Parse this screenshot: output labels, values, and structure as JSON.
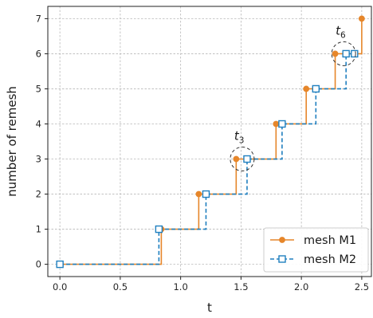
{
  "chart_data": {
    "type": "line",
    "step": "post",
    "xlabel": "t",
    "ylabel": "number of remesh",
    "xlim": [
      -0.1,
      2.58
    ],
    "ylim": [
      -0.35,
      7.35
    ],
    "xticks": [
      0.0,
      0.5,
      1.0,
      1.5,
      2.0,
      2.5
    ],
    "xtick_labels": [
      "0.0",
      "0.5",
      "1.0",
      "1.5",
      "2.0",
      "2.5"
    ],
    "yticks": [
      0,
      1,
      2,
      3,
      4,
      5,
      6,
      7
    ],
    "ytick_labels": [
      "0",
      "1",
      "2",
      "3",
      "4",
      "5",
      "6",
      "7"
    ],
    "grid": true,
    "legend_position": "lower-right",
    "series": [
      {
        "name": "mesh M1",
        "color": "#e6862a",
        "line_style": "solid",
        "marker": "circle",
        "x": [
          0.0,
          0.84,
          1.15,
          1.46,
          1.79,
          2.04,
          2.28,
          2.5
        ],
        "y": [
          0,
          1,
          2,
          3,
          4,
          5,
          6,
          7
        ]
      },
      {
        "name": "mesh M2",
        "color": "#1f7fbf",
        "line_style": "dashed",
        "marker": "open-square",
        "x": [
          0.0,
          0.82,
          1.21,
          1.55,
          1.84,
          2.12,
          2.37,
          2.44
        ],
        "y": [
          0,
          1,
          2,
          3,
          4,
          5,
          6,
          6
        ]
      }
    ],
    "annotations": [
      {
        "base": "t",
        "sub": "3",
        "x": 1.51,
        "y": 3.0
      },
      {
        "base": "t",
        "sub": "6",
        "x": 2.35,
        "y": 6.0
      }
    ]
  }
}
